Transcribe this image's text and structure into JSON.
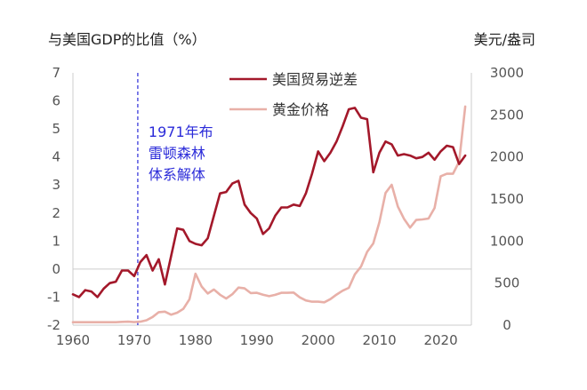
{
  "chart_data": {
    "type": "line",
    "title_left": "与美国GDP的比值（%）",
    "title_right": "美元/盎司",
    "x_ticks": [
      "1960",
      "1970",
      "1980",
      "1990",
      "2000",
      "2010",
      "2020"
    ],
    "x_tick_values": [
      1960,
      1970,
      1980,
      1990,
      2000,
      2010,
      2020
    ],
    "xlim": [
      1960,
      2025
    ],
    "y_left": {
      "ticks": [
        "-2",
        "-1",
        "0",
        "1",
        "2",
        "3",
        "4",
        "5",
        "6",
        "7"
      ],
      "tick_values": [
        -2,
        -1,
        0,
        1,
        2,
        3,
        4,
        5,
        6,
        7
      ],
      "ylim": [
        -2,
        7
      ]
    },
    "y_right": {
      "ticks": [
        "0",
        "500",
        "1000",
        "1500",
        "2000",
        "2500",
        "3000"
      ],
      "tick_values": [
        0,
        500,
        1000,
        1500,
        2000,
        2500,
        3000
      ],
      "ylim": [
        0,
        3000
      ]
    },
    "annotation": {
      "year": 1970,
      "lines": [
        "1971年布",
        "雷顿森林",
        "体系解体"
      ],
      "color": "#2b2bd9"
    },
    "legend": [
      "美国贸易逆差",
      "黄金价格"
    ],
    "colors": {
      "trade": "#a3182a",
      "gold": "#e8b0a8",
      "axis": "#cccccc",
      "annotation": "#2b2bd9"
    },
    "series": [
      {
        "name": "美国贸易逆差",
        "axis": "left",
        "x": [
          1960,
          1961,
          1962,
          1963,
          1964,
          1965,
          1966,
          1967,
          1968,
          1969,
          1970,
          1971,
          1972,
          1973,
          1974,
          1975,
          1976,
          1977,
          1978,
          1979,
          1980,
          1981,
          1982,
          1983,
          1984,
          1985,
          1986,
          1987,
          1988,
          1989,
          1990,
          1991,
          1992,
          1993,
          1994,
          1995,
          1996,
          1997,
          1998,
          1999,
          2000,
          2001,
          2002,
          2003,
          2004,
          2005,
          2006,
          2007,
          2008,
          2009,
          2010,
          2011,
          2012,
          2013,
          2014,
          2015,
          2016,
          2017,
          2018,
          2019,
          2020,
          2021,
          2022,
          2023,
          2024
        ],
        "values": [
          -0.9,
          -1.0,
          -0.75,
          -0.8,
          -1.0,
          -0.7,
          -0.5,
          -0.45,
          -0.05,
          -0.05,
          -0.25,
          0.25,
          0.5,
          -0.05,
          0.35,
          -0.55,
          0.45,
          1.45,
          1.4,
          1.0,
          0.9,
          0.85,
          1.1,
          1.9,
          2.7,
          2.75,
          3.05,
          3.15,
          2.3,
          2.0,
          1.8,
          1.25,
          1.45,
          1.9,
          2.2,
          2.2,
          2.3,
          2.25,
          2.7,
          3.4,
          4.2,
          3.85,
          4.15,
          4.55,
          5.1,
          5.7,
          5.75,
          5.4,
          5.35,
          3.45,
          4.15,
          4.55,
          4.45,
          4.05,
          4.1,
          4.05,
          3.95,
          4.0,
          4.15,
          3.9,
          4.2,
          4.4,
          4.35,
          3.75,
          4.05
        ]
      },
      {
        "name": "黄金价格",
        "axis": "right",
        "x": [
          1960,
          1961,
          1962,
          1963,
          1964,
          1965,
          1966,
          1967,
          1968,
          1969,
          1970,
          1971,
          1972,
          1973,
          1974,
          1975,
          1976,
          1977,
          1978,
          1979,
          1980,
          1981,
          1982,
          1983,
          1984,
          1985,
          1986,
          1987,
          1988,
          1989,
          1990,
          1991,
          1992,
          1993,
          1994,
          1995,
          1996,
          1997,
          1998,
          1999,
          2000,
          2001,
          2002,
          2003,
          2004,
          2005,
          2006,
          2007,
          2008,
          2009,
          2010,
          2011,
          2012,
          2013,
          2014,
          2015,
          2016,
          2017,
          2018,
          2019,
          2020,
          2021,
          2022,
          2023,
          2024
        ],
        "values": [
          35,
          35,
          35,
          35,
          35,
          35,
          35,
          35,
          39,
          41,
          36,
          41,
          58,
          97,
          154,
          161,
          125,
          148,
          193,
          307,
          612,
          460,
          376,
          424,
          361,
          317,
          368,
          447,
          437,
          381,
          384,
          362,
          344,
          360,
          385,
          384,
          388,
          331,
          294,
          279,
          279,
          271,
          310,
          363,
          410,
          444,
          604,
          696,
          872,
          972,
          1225,
          1572,
          1669,
          1411,
          1266,
          1160,
          1251,
          1257,
          1268,
          1393,
          1770,
          1800,
          1800,
          1943,
          2600
        ]
      }
    ]
  }
}
